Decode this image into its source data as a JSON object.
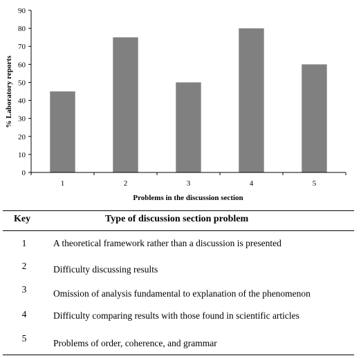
{
  "chart_data": {
    "type": "bar",
    "categories": [
      "1",
      "2",
      "3",
      "4",
      "5"
    ],
    "values": [
      45,
      75,
      50,
      80,
      60
    ],
    "xlabel": "Problems in the discussion section",
    "ylabel": "% Laboratory reports",
    "ylim": [
      0,
      90
    ],
    "yticks": [
      0,
      10,
      20,
      30,
      40,
      50,
      60,
      70,
      80,
      90
    ],
    "grid": false,
    "bar_color": "#808080"
  },
  "table": {
    "headers": [
      "Key",
      "Type of discussion section problem"
    ],
    "rows": [
      {
        "key": "1",
        "text": "A theoretical framework rather than a discussion is presented"
      },
      {
        "key": "2",
        "text": "Difficulty discussing results"
      },
      {
        "key": "3",
        "text": "Omission of analysis fundamental to explanation of the phenomenon"
      },
      {
        "key": "4",
        "text": "Difficulty comparing results with those found in scientific articles"
      },
      {
        "key": "5",
        "text": "Problems of order, coherence, and grammar"
      }
    ]
  }
}
